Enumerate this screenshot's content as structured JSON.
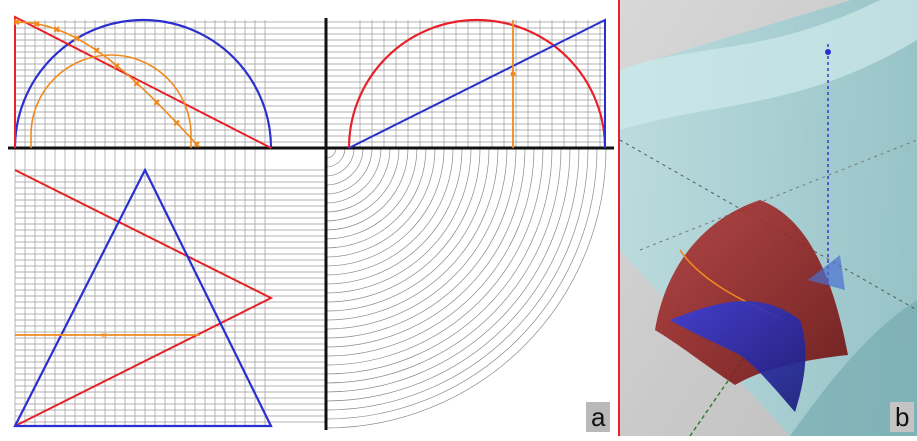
{
  "panels": {
    "left_label": "a",
    "right_label": "b"
  },
  "colors": {
    "red": "#e8202a",
    "blue": "#2a2fd0",
    "orange": "#f08a1e",
    "grid": "#9a9a9a",
    "axis": "#111111",
    "sheet": "#a9d3d6",
    "sheet_dark": "#7fb4b9"
  }
}
